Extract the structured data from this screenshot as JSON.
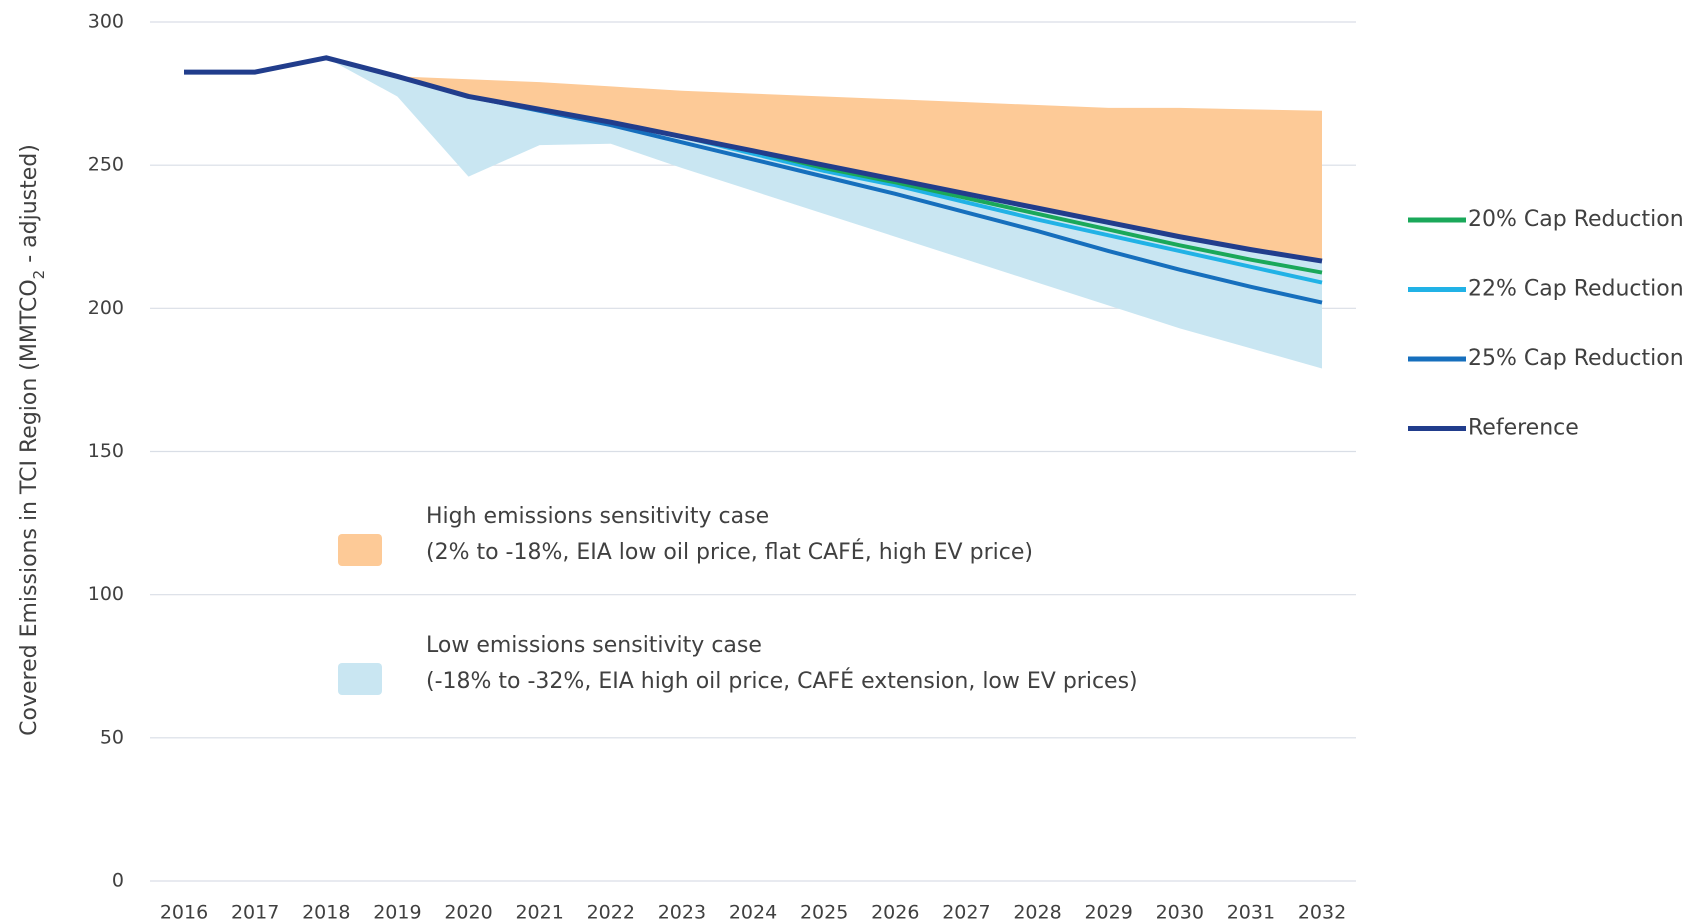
{
  "chart_data": {
    "type": "line",
    "y_label": [
      "Covered Emissions in TCI Region (MMTCO",
      "2",
      " - adjusted)"
    ],
    "x": [
      2016,
      2017,
      2018,
      2019,
      2020,
      2021,
      2022,
      2023,
      2024,
      2025,
      2026,
      2027,
      2028,
      2029,
      2030,
      2031,
      2032
    ],
    "xlim": [
      2016,
      2032
    ],
    "ylim": [
      0,
      300
    ],
    "yticks": [
      0,
      50,
      100,
      150,
      200,
      250,
      300
    ],
    "grid": true,
    "series": [
      {
        "name": "20% Cap Reduction",
        "color": "#1aa85a",
        "values": [
          282.5,
          282.5,
          287.5,
          281,
          274,
          269.5,
          265,
          260,
          255,
          249,
          244,
          238.5,
          233,
          227.5,
          222,
          217,
          212.5
        ]
      },
      {
        "name": "22% Cap Reduction",
        "color": "#21b2e6",
        "values": [
          282.5,
          282.5,
          287.5,
          281,
          274,
          269.5,
          265,
          260,
          254,
          248,
          243,
          237,
          231,
          225.5,
          220,
          214.5,
          209
        ]
      },
      {
        "name": "25% Cap Reduction",
        "color": "#166fbd",
        "values": [
          282.5,
          282.5,
          287.5,
          281,
          274,
          269,
          264,
          258,
          252,
          246,
          240,
          233.5,
          227,
          220,
          213.5,
          207.5,
          202
        ]
      },
      {
        "name": "Reference",
        "color": "#213d8c",
        "values": [
          282.5,
          282.5,
          287.5,
          281,
          274,
          269.5,
          265,
          260,
          255,
          250,
          245,
          240,
          235,
          230,
          225,
          220.5,
          216.5
        ]
      }
    ],
    "bands": [
      {
        "name": "High emissions sensitivity case",
        "description": "(2% to -18%, EIA low oil price, flat CAFÉ, high EV price)",
        "color": "#fdca97",
        "upper": [
          null,
          null,
          null,
          281,
          280,
          279,
          277.5,
          276,
          275,
          274,
          273,
          272,
          271,
          270,
          270,
          269.5,
          269
        ],
        "lower": [
          null,
          null,
          null,
          281,
          274,
          269.5,
          265,
          260,
          255,
          250,
          245,
          240,
          235,
          230,
          225,
          220.5,
          216.5
        ]
      },
      {
        "name": "Low emissions sensitivity case",
        "description": "(-18% to -32%, EIA high oil price, CAFÉ extension, low EV prices)",
        "color": "#c9e6f2",
        "upper": [
          null,
          null,
          287.5,
          281,
          274,
          269.5,
          265,
          260,
          255,
          250,
          245,
          240,
          235,
          230,
          225,
          220.5,
          216.5
        ],
        "lower": [
          null,
          null,
          287.5,
          274,
          246,
          257,
          257.5,
          249,
          241,
          233,
          225,
          217,
          209,
          201,
          193,
          186,
          179
        ]
      }
    ]
  }
}
